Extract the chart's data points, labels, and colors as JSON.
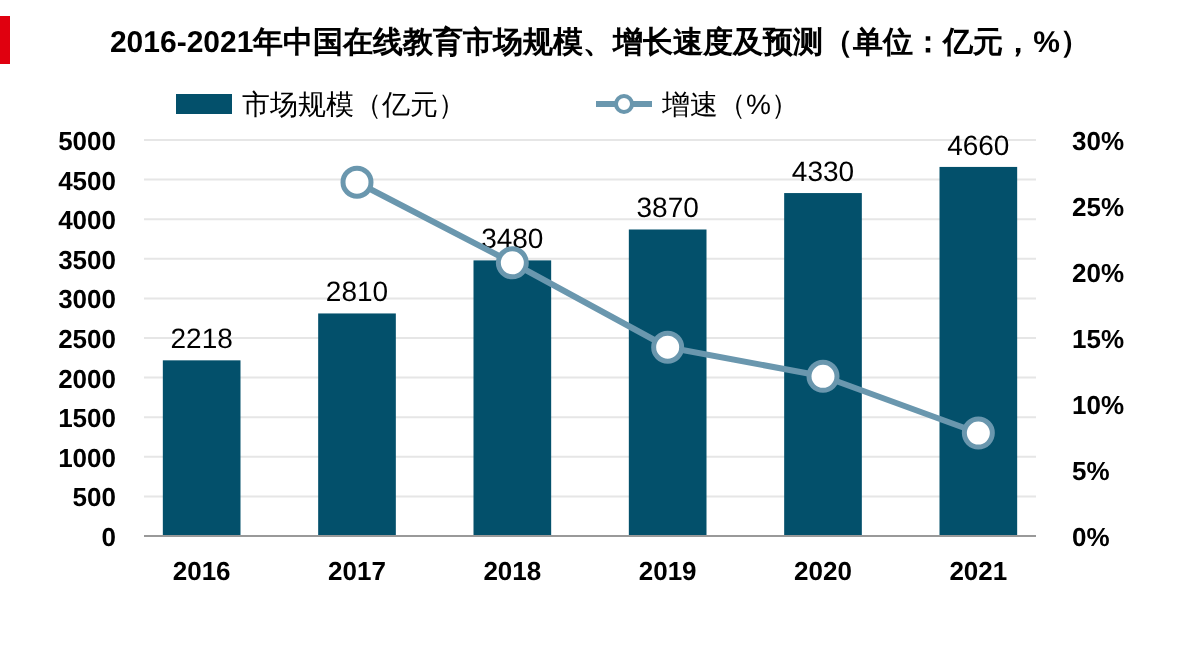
{
  "chart_data": {
    "type": "bar",
    "title": "2016-2021年中国在线教育市场规模、增长速度及预测（单位：亿元，%）",
    "categories": [
      "2016",
      "2017",
      "2018",
      "2019",
      "2020",
      "2021"
    ],
    "series": [
      {
        "name": "市场规模（亿元）",
        "color": "#03506b",
        "values": [
          2218,
          2810,
          3480,
          3870,
          4330,
          4660
        ],
        "value_labels": [
          "2218",
          "2810",
          "3480",
          "3870",
          "4330",
          "4660"
        ]
      },
      {
        "name": "增速（%）",
        "type": "line",
        "axis": "y2",
        "color": "#6a97ae",
        "marker": "circle",
        "values": [
          null,
          26.8,
          20.7,
          14.3,
          12.1,
          7.8
        ]
      }
    ],
    "ylim": [
      0,
      5000
    ],
    "yticks": [
      0,
      500,
      1000,
      1500,
      2000,
      2500,
      3000,
      3500,
      4000,
      4500,
      5000
    ],
    "y2lim": [
      0,
      30
    ],
    "y2ticks": [
      {
        "value": 0,
        "label": "0%"
      },
      {
        "value": 5,
        "label": "5%"
      },
      {
        "value": 10,
        "label": "10%"
      },
      {
        "value": 15,
        "label": "15%"
      },
      {
        "value": 20,
        "label": "20%"
      },
      {
        "value": 25,
        "label": "25%"
      },
      {
        "value": 30,
        "label": "30%"
      }
    ],
    "grid": "y",
    "legend": "top"
  }
}
